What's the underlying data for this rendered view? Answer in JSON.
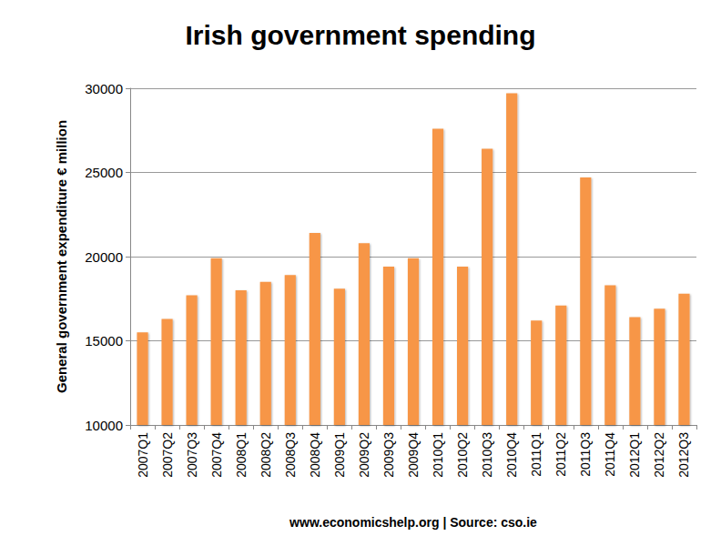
{
  "chart_data": {
    "type": "bar",
    "title": "Irish government spending",
    "y_label": "General government expenditure € million",
    "x_label": "www.economicshelp.org | Source: cso.ie",
    "categories": [
      "2007Q1",
      "2007Q2",
      "2007Q3",
      "2007Q4",
      "2008Q1",
      "2008Q2",
      "2008Q3",
      "2008Q4",
      "2009Q1",
      "2009Q2",
      "2009Q3",
      "2009Q4",
      "2010Q1",
      "2010Q2",
      "2010Q3",
      "2010Q4",
      "2011Q1",
      "2011Q2",
      "2011Q3",
      "2011Q4",
      "2012Q1",
      "2012Q2",
      "2012Q3"
    ],
    "values": [
      15500,
      16300,
      17700,
      19900,
      18000,
      18500,
      18900,
      21400,
      18100,
      20800,
      19400,
      19900,
      27600,
      19400,
      26400,
      29700,
      16200,
      17100,
      24700,
      18300,
      16400,
      16900,
      17800
    ],
    "color": "#f79646",
    "ylim": [
      10000,
      30000
    ],
    "yticks": [
      10000,
      15000,
      20000,
      25000,
      30000
    ],
    "grid": true
  }
}
